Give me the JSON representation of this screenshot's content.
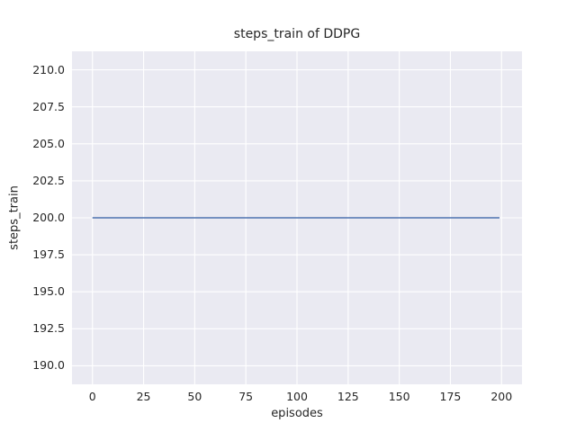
{
  "chart_data": {
    "type": "line",
    "title": "steps_train of DDPG",
    "xlabel": "episodes",
    "ylabel": "steps_train",
    "x_ticks": [
      0,
      25,
      50,
      75,
      100,
      125,
      150,
      175,
      200
    ],
    "x_tick_labels": [
      "0",
      "25",
      "50",
      "75",
      "100",
      "125",
      "150",
      "175",
      "200"
    ],
    "y_ticks": [
      190.0,
      192.5,
      195.0,
      197.5,
      200.0,
      202.5,
      205.0,
      207.5,
      210.0
    ],
    "y_tick_labels": [
      "190.0",
      "192.5",
      "195.0",
      "197.5",
      "200.0",
      "202.5",
      "205.0",
      "207.5",
      "210.0"
    ],
    "xlim": [
      -10,
      210
    ],
    "ylim": [
      188.75,
      211.25
    ],
    "grid": true,
    "legend": "none",
    "plot_background": "#eaeaf2",
    "grid_color": "#ffffff",
    "series": [
      {
        "name": "steps_train",
        "color": "#4c72b0",
        "x": [
          0,
          199
        ],
        "values": [
          200,
          200
        ]
      }
    ]
  }
}
